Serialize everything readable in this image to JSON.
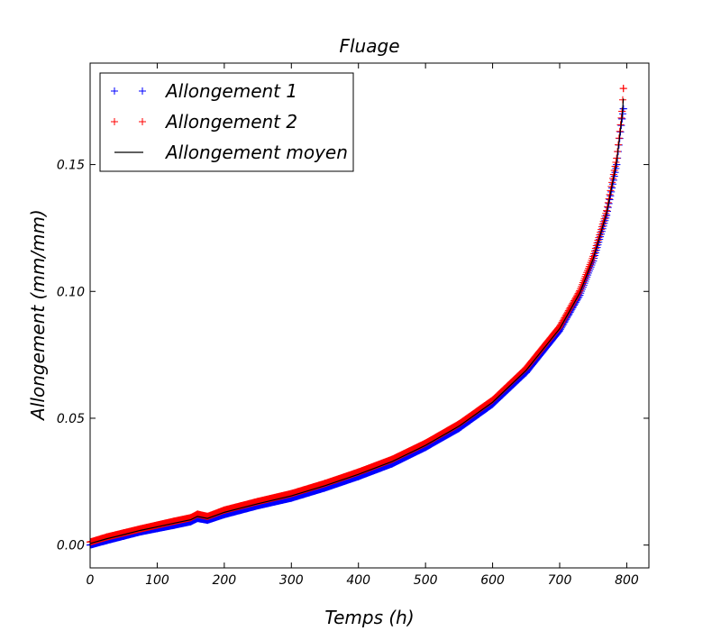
{
  "chart_data": {
    "type": "scatter",
    "title": "Fluage",
    "xlabel": "Temps (h)",
    "ylabel": "Allongement (mm/mm)",
    "xlim": [
      0,
      833
    ],
    "ylim": [
      -0.009,
      0.19
    ],
    "x_ticks": [
      0,
      100,
      200,
      300,
      400,
      500,
      600,
      700,
      800
    ],
    "x_tick_labels": [
      "0",
      "100",
      "200",
      "300",
      "400",
      "500",
      "600",
      "700",
      "800"
    ],
    "y_ticks": [
      0.0,
      0.05,
      0.1,
      0.15
    ],
    "y_tick_labels": [
      "0.00",
      "0.05",
      "0.10",
      "0.15"
    ],
    "grid": false,
    "legend_position": "top-left",
    "series": [
      {
        "name": "Allongement 1",
        "marker": "+",
        "color": "#0000ff",
        "x": [
          0,
          25,
          50,
          75,
          100,
          125,
          150,
          160,
          175,
          200,
          250,
          300,
          350,
          400,
          450,
          500,
          550,
          600,
          650,
          700,
          730,
          750,
          770,
          785,
          793,
          795
        ],
        "y": [
          0.0,
          0.0018,
          0.0035,
          0.0052,
          0.0065,
          0.0078,
          0.0092,
          0.0105,
          0.0098,
          0.012,
          0.0155,
          0.0185,
          0.0225,
          0.027,
          0.032,
          0.0385,
          0.046,
          0.0555,
          0.068,
          0.0845,
          0.0985,
          0.112,
          0.13,
          0.15,
          0.168,
          0.172
        ]
      },
      {
        "name": "Allongement 2",
        "marker": "+",
        "color": "#ff0000",
        "x": [
          0,
          25,
          50,
          75,
          100,
          125,
          150,
          160,
          175,
          200,
          250,
          300,
          350,
          400,
          450,
          500,
          550,
          600,
          650,
          700,
          730,
          750,
          770,
          785,
          793,
          795
        ],
        "y": [
          0.0012,
          0.0032,
          0.0048,
          0.0064,
          0.0079,
          0.0094,
          0.0108,
          0.0122,
          0.0113,
          0.0138,
          0.0172,
          0.0203,
          0.0243,
          0.0288,
          0.0338,
          0.0402,
          0.0478,
          0.0572,
          0.0698,
          0.0862,
          0.1003,
          0.1138,
          0.1318,
          0.1525,
          0.171,
          0.18
        ]
      },
      {
        "name": "Allongement moyen",
        "marker": "line",
        "color": "#000000",
        "x": [
          0,
          25,
          50,
          75,
          100,
          125,
          150,
          160,
          175,
          200,
          250,
          300,
          350,
          400,
          450,
          500,
          550,
          600,
          650,
          700,
          730,
          750,
          770,
          785,
          793,
          795
        ],
        "y": [
          0.0006,
          0.0025,
          0.0041,
          0.0058,
          0.0072,
          0.0086,
          0.01,
          0.0113,
          0.0105,
          0.0129,
          0.0163,
          0.0194,
          0.0234,
          0.0279,
          0.0329,
          0.0393,
          0.0469,
          0.0563,
          0.0689,
          0.0853,
          0.0994,
          0.1129,
          0.1309,
          0.1512,
          0.169,
          0.176
        ]
      }
    ]
  }
}
